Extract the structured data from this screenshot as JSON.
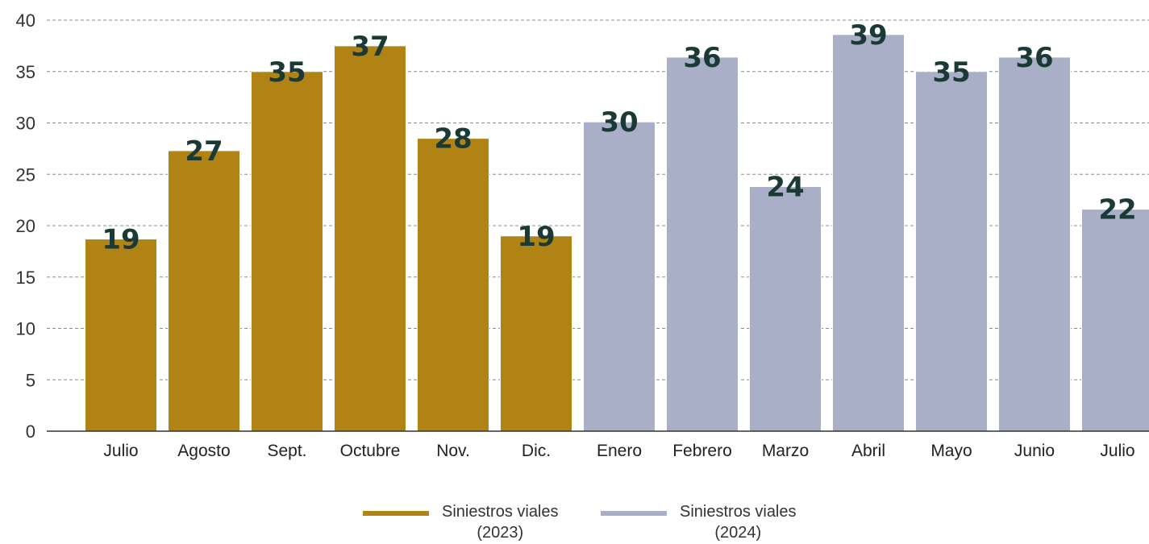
{
  "chart_data": {
    "type": "bar",
    "categories": [
      "Julio",
      "Agosto",
      "Sept.",
      "Octubre",
      "Nov.",
      "Dic.",
      "Enero",
      "Febrero",
      "Marzo",
      "Abril",
      "Mayo",
      "Junio",
      "Julio"
    ],
    "series": [
      {
        "name": "Siniestros viales (2023)",
        "color": "#b08314",
        "values": [
          18.7,
          27.3,
          35.0,
          37.5,
          28.5,
          19.0,
          null,
          null,
          null,
          null,
          null,
          null,
          null
        ],
        "labels": [
          "19",
          "27",
          "35",
          "37",
          "28",
          "19",
          "",
          "",
          "",
          "",
          "",
          "",
          ""
        ]
      },
      {
        "name": "Siniestros viales (2024)",
        "color": "#a9afc7",
        "values": [
          null,
          null,
          null,
          null,
          null,
          null,
          30.1,
          36.4,
          23.8,
          38.6,
          35.0,
          36.4,
          21.6
        ],
        "labels": [
          "",
          "",
          "",
          "",
          "",
          "",
          "30",
          "36",
          "24",
          "39",
          "35",
          "36",
          "22"
        ]
      }
    ],
    "yticks": [
      "0",
      "5",
      "10",
      "15",
      "20",
      "25",
      "30",
      "35",
      "40"
    ],
    "ylim": [
      0,
      40
    ],
    "grid": true,
    "legend_position": "bottom",
    "title": "",
    "xlabel": "",
    "ylabel": ""
  },
  "legend": {
    "items": [
      {
        "line1": "Siniestros viales",
        "line2": "(2023)",
        "color": "#b08314"
      },
      {
        "line1": "Siniestros viales",
        "line2": "(2024)",
        "color": "#a9afc7"
      }
    ]
  }
}
